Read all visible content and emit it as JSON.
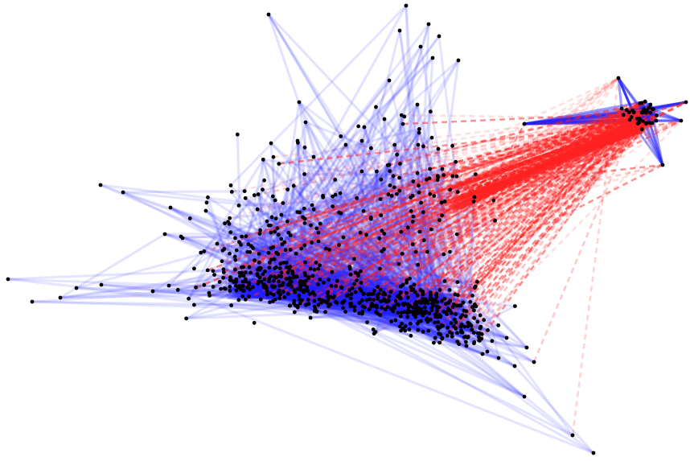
{
  "graph": {
    "node_color": "#000000",
    "intra_edge_color": "#2222ff",
    "cross_edge_color": "#ff2222",
    "cross_edge_style": "dashed",
    "clusters": [
      "main-cluster",
      "satellite-cluster"
    ]
  }
}
